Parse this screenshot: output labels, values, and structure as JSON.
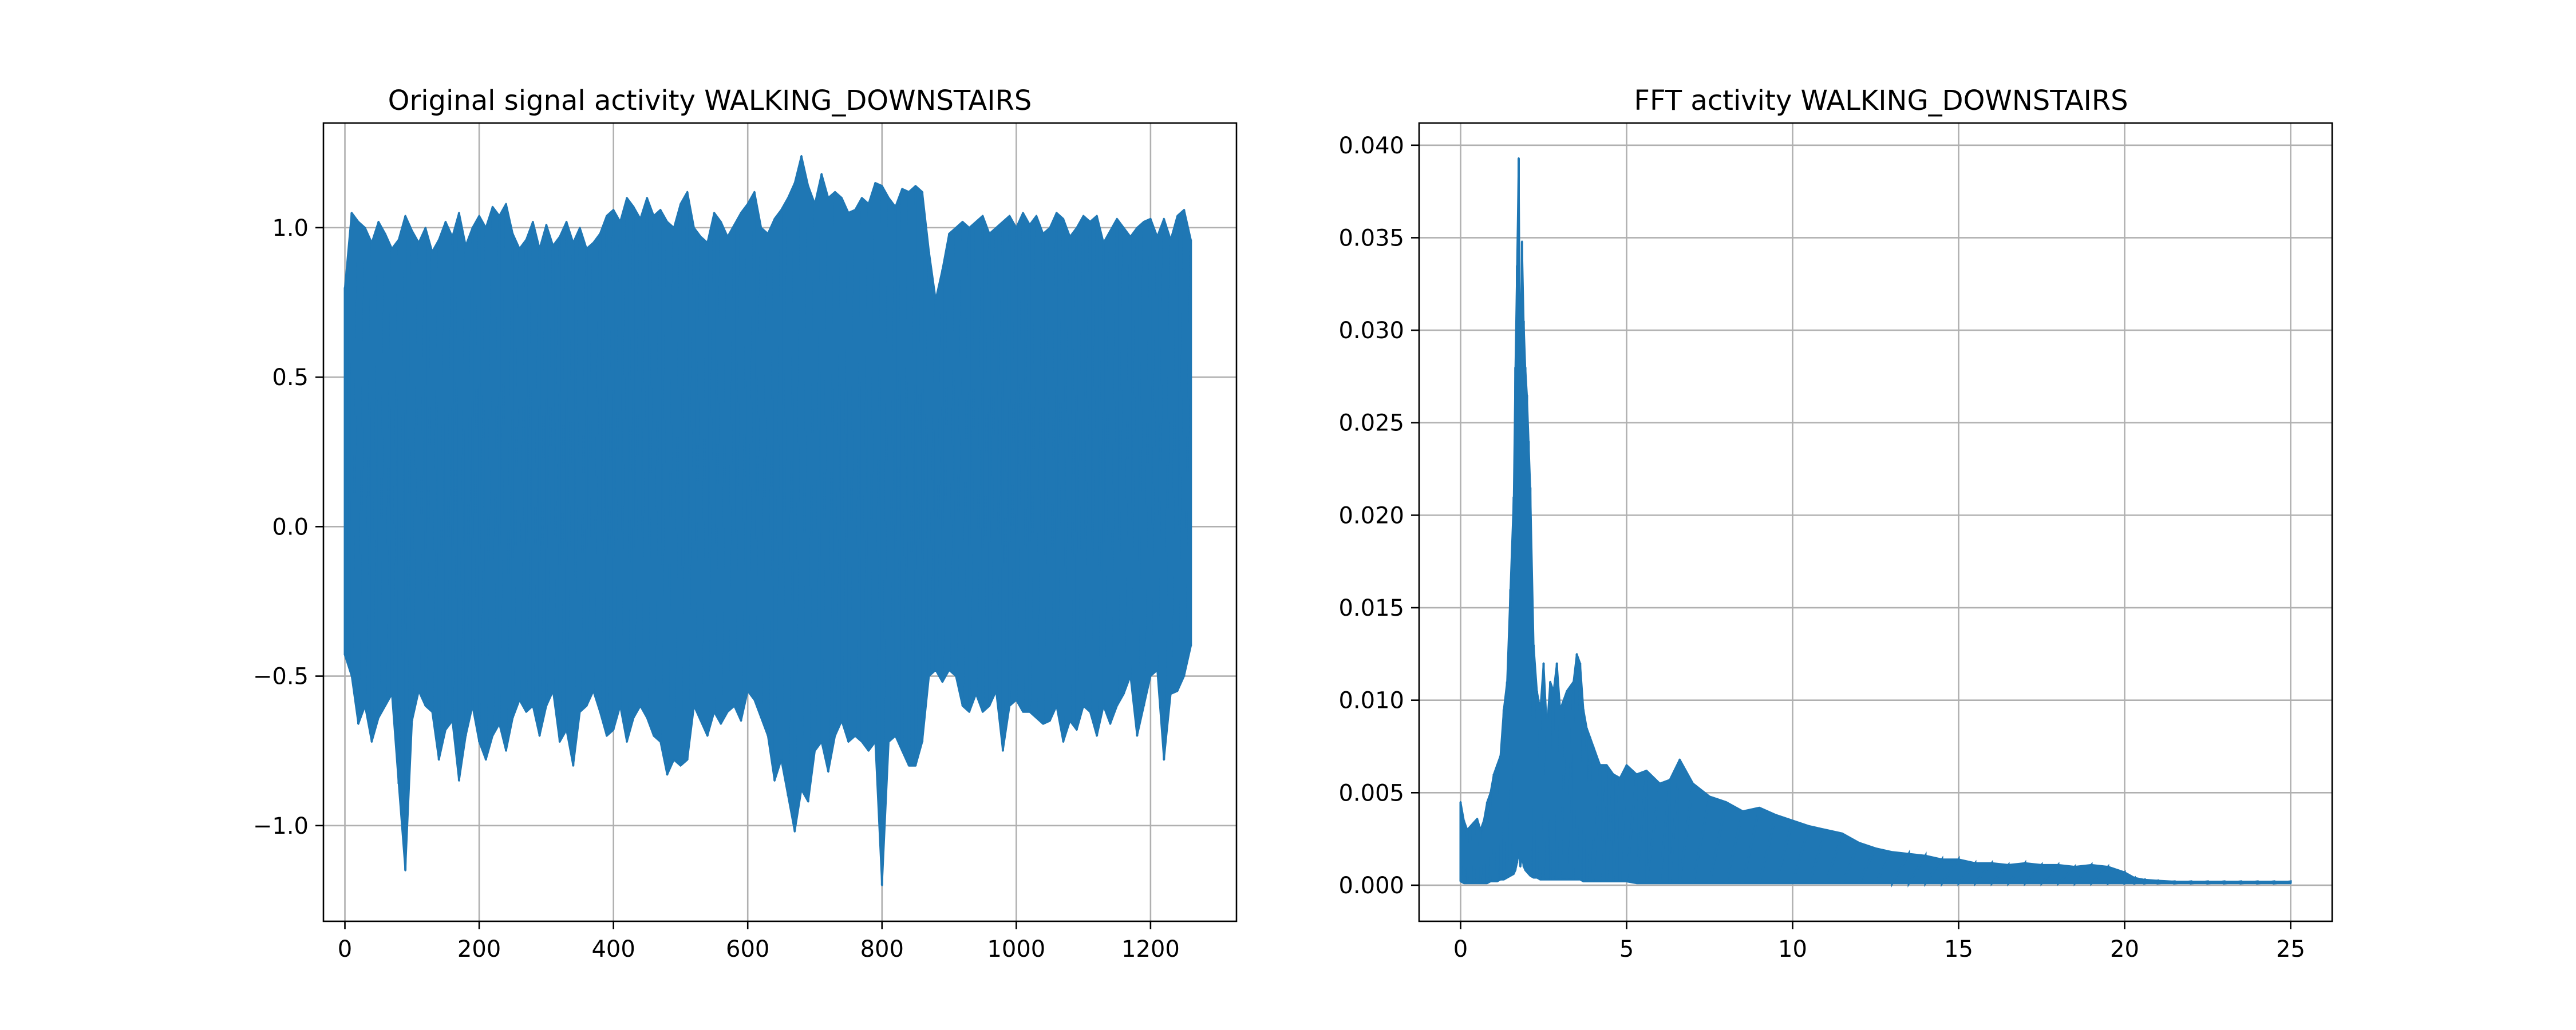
{
  "figure": {
    "background": "#ffffff"
  },
  "chart_data": [
    {
      "type": "line",
      "title": "Original signal activity WALKING_DOWNSTAIRS",
      "xlabel": "",
      "ylabel": "",
      "xlim": [
        -32,
        1328
      ],
      "ylim": [
        -1.32,
        1.35
      ],
      "xticks": [
        0,
        200,
        400,
        600,
        800,
        1000,
        1200
      ],
      "xtick_labels": [
        "0",
        "200",
        "400",
        "600",
        "800",
        "1000",
        "1200"
      ],
      "yticks": [
        -1.0,
        -0.5,
        0.0,
        0.5,
        1.0
      ],
      "ytick_labels": [
        "−1.0",
        "−0.5",
        "0.0",
        "0.5",
        "1.0"
      ],
      "grid": true,
      "color": "#1f77b4",
      "series": [
        {
          "x": [
            0,
            10,
            20,
            30,
            40,
            50,
            60,
            70,
            80,
            90,
            100,
            110,
            120,
            130,
            140,
            150,
            160,
            170,
            180,
            190,
            200,
            210,
            220,
            230,
            240,
            250,
            260,
            270,
            280,
            290,
            300,
            310,
            320,
            330,
            340,
            350,
            360,
            370,
            380,
            390,
            400,
            410,
            420,
            430,
            440,
            450,
            460,
            470,
            480,
            490,
            500,
            510,
            520,
            530,
            540,
            550,
            560,
            570,
            580,
            590,
            600,
            610,
            620,
            630,
            640,
            650,
            660,
            670,
            680,
            690,
            700,
            710,
            720,
            730,
            740,
            750,
            760,
            770,
            780,
            790,
            800,
            810,
            820,
            830,
            840,
            850,
            860,
            870,
            880,
            890,
            900,
            910,
            920,
            930,
            940,
            950,
            960,
            970,
            980,
            990,
            1000,
            1010,
            1020,
            1030,
            1040,
            1050,
            1060,
            1070,
            1080,
            1090,
            1100,
            1110,
            1120,
            1130,
            1140,
            1150,
            1160,
            1170,
            1180,
            1190,
            1200,
            1210,
            1220,
            1230,
            1240,
            1250,
            1260
          ],
          "upper": [
            0.8,
            1.05,
            1.02,
            1.0,
            0.95,
            1.02,
            0.98,
            0.93,
            0.96,
            1.04,
            0.99,
            0.95,
            1.0,
            0.92,
            0.96,
            1.02,
            0.97,
            1.05,
            0.94,
            1.0,
            1.04,
            1.0,
            1.07,
            1.04,
            1.08,
            0.98,
            0.93,
            0.96,
            1.02,
            0.93,
            1.01,
            0.94,
            0.97,
            1.02,
            0.95,
            1.0,
            0.93,
            0.95,
            0.98,
            1.04,
            1.06,
            1.02,
            1.1,
            1.07,
            1.03,
            1.1,
            1.04,
            1.06,
            1.02,
            1.0,
            1.08,
            1.12,
            1.0,
            0.97,
            0.95,
            1.05,
            1.02,
            0.97,
            1.01,
            1.05,
            1.08,
            1.12,
            1.0,
            0.98,
            1.03,
            1.06,
            1.1,
            1.15,
            1.24,
            1.14,
            1.08,
            1.18,
            1.1,
            1.12,
            1.1,
            1.05,
            1.06,
            1.1,
            1.08,
            1.15,
            1.14,
            1.1,
            1.07,
            1.13,
            1.12,
            1.14,
            1.12,
            0.92,
            0.76,
            0.86,
            0.98,
            1.0,
            1.02,
            1.0,
            1.02,
            1.04,
            0.98,
            1.0,
            1.02,
            1.04,
            1.0,
            1.05,
            1.01,
            1.04,
            0.98,
            1.0,
            1.05,
            1.03,
            0.97,
            1.0,
            1.04,
            1.02,
            1.04,
            0.95,
            0.99,
            1.03,
            1.0,
            0.97,
            1.0,
            1.02,
            1.03,
            0.97,
            1.03,
            0.96,
            1.04,
            1.06,
            0.96
          ],
          "lower": [
            -0.43,
            -0.5,
            -0.66,
            -0.6,
            -0.72,
            -0.64,
            -0.6,
            -0.56,
            -0.86,
            -1.15,
            -0.65,
            -0.55,
            -0.6,
            -0.62,
            -0.78,
            -0.68,
            -0.65,
            -0.85,
            -0.7,
            -0.6,
            -0.72,
            -0.78,
            -0.7,
            -0.66,
            -0.75,
            -0.64,
            -0.58,
            -0.62,
            -0.6,
            -0.7,
            -0.6,
            -0.55,
            -0.72,
            -0.68,
            -0.8,
            -0.62,
            -0.6,
            -0.55,
            -0.62,
            -0.7,
            -0.68,
            -0.6,
            -0.72,
            -0.64,
            -0.6,
            -0.64,
            -0.7,
            -0.72,
            -0.83,
            -0.78,
            -0.8,
            -0.78,
            -0.6,
            -0.65,
            -0.7,
            -0.62,
            -0.66,
            -0.62,
            -0.6,
            -0.65,
            -0.55,
            -0.58,
            -0.64,
            -0.7,
            -0.85,
            -0.78,
            -0.9,
            -1.02,
            -0.88,
            -0.92,
            -0.75,
            -0.72,
            -0.82,
            -0.7,
            -0.65,
            -0.72,
            -0.7,
            -0.72,
            -0.75,
            -0.72,
            -1.2,
            -0.72,
            -0.7,
            -0.75,
            -0.8,
            -0.8,
            -0.72,
            -0.5,
            -0.48,
            -0.52,
            -0.48,
            -0.5,
            -0.6,
            -0.62,
            -0.56,
            -0.62,
            -0.6,
            -0.55,
            -0.75,
            -0.6,
            -0.58,
            -0.62,
            -0.62,
            -0.64,
            -0.66,
            -0.65,
            -0.6,
            -0.72,
            -0.65,
            -0.68,
            -0.6,
            -0.62,
            -0.7,
            -0.6,
            -0.66,
            -0.6,
            -0.56,
            -0.5,
            -0.7,
            -0.6,
            -0.5,
            -0.48,
            -0.78,
            -0.56,
            -0.55,
            -0.5,
            -0.4
          ]
        }
      ]
    },
    {
      "type": "line",
      "title": "FFT activity WALKING_DOWNSTAIRS",
      "xlabel": "",
      "ylabel": "",
      "xlim": [
        -1.25,
        26.25
      ],
      "ylim": [
        -0.00195,
        0.0412
      ],
      "xticks": [
        0,
        5,
        10,
        15,
        20,
        25
      ],
      "xtick_labels": [
        "0",
        "5",
        "10",
        "15",
        "20",
        "25"
      ],
      "yticks": [
        0.0,
        0.005,
        0.01,
        0.015,
        0.02,
        0.025,
        0.03,
        0.035,
        0.04
      ],
      "ytick_labels": [
        "0.000",
        "0.005",
        "0.010",
        "0.015",
        "0.020",
        "0.025",
        "0.030",
        "0.035",
        "0.040"
      ],
      "grid": true,
      "color": "#1f77b4",
      "series": [
        {
          "x": [
            0.0,
            0.1,
            0.2,
            0.3,
            0.4,
            0.5,
            0.6,
            0.7,
            0.8,
            0.9,
            1.0,
            1.1,
            1.2,
            1.3,
            1.4,
            1.5,
            1.6,
            1.65,
            1.7,
            1.75,
            1.8,
            1.85,
            1.9,
            1.95,
            2.0,
            2.05,
            2.1,
            2.2,
            2.3,
            2.4,
            2.5,
            2.6,
            2.7,
            2.8,
            2.9,
            3.0,
            3.2,
            3.4,
            3.5,
            3.6,
            3.7,
            3.8,
            3.9,
            4.0,
            4.2,
            4.4,
            4.6,
            4.8,
            5.0,
            5.3,
            5.6,
            6.0,
            6.3,
            6.6,
            7.0,
            7.5,
            8.0,
            8.5,
            9.0,
            9.5,
            10.0,
            10.5,
            11.0,
            11.5,
            12.0,
            12.5,
            13.0,
            13.5,
            14.0,
            14.5,
            15.0,
            15.5,
            16.0,
            16.5,
            17.0,
            17.5,
            18.0,
            18.5,
            19.0,
            19.5,
            20.0,
            20.3,
            20.6,
            21.0,
            21.5,
            22.0,
            22.5,
            23.0,
            23.5,
            24.0,
            24.5,
            25.0
          ],
          "upper": [
            0.0045,
            0.0035,
            0.003,
            0.0032,
            0.0034,
            0.0036,
            0.003,
            0.0035,
            0.0045,
            0.005,
            0.006,
            0.0065,
            0.007,
            0.0095,
            0.011,
            0.016,
            0.021,
            0.028,
            0.0335,
            0.0393,
            0.027,
            0.0348,
            0.0305,
            0.028,
            0.0265,
            0.024,
            0.0215,
            0.013,
            0.0105,
            0.0095,
            0.012,
            0.0085,
            0.011,
            0.0105,
            0.012,
            0.0095,
            0.0105,
            0.011,
            0.0125,
            0.012,
            0.0095,
            0.0085,
            0.008,
            0.0075,
            0.0065,
            0.0065,
            0.006,
            0.0058,
            0.0065,
            0.006,
            0.0062,
            0.0055,
            0.0057,
            0.0068,
            0.0055,
            0.0048,
            0.0045,
            0.004,
            0.0042,
            0.0038,
            0.0035,
            0.0032,
            0.003,
            0.0028,
            0.0023,
            0.002,
            0.0018,
            0.0017,
            0.0016,
            0.0014,
            0.0014,
            0.0012,
            0.0012,
            0.0011,
            0.0012,
            0.0011,
            0.0011,
            0.001,
            0.0011,
            0.001,
            0.0007,
            0.0004,
            0.0003,
            0.00025,
            0.0002,
            0.0002,
            0.0002,
            0.0002,
            0.0002,
            0.0002,
            0.0002,
            0.0002
          ],
          "lower": [
            0.0002,
            0.0001,
            0.0001,
            0.0001,
            0.0001,
            0.0001,
            0.0001,
            0.0001,
            0.0001,
            0.0002,
            0.0002,
            0.0002,
            0.0003,
            0.0003,
            0.0004,
            0.0005,
            0.0006,
            0.0008,
            0.0012,
            0.0018,
            0.001,
            0.0015,
            0.001,
            0.0008,
            0.0007,
            0.0006,
            0.0005,
            0.0004,
            0.0004,
            0.0003,
            0.0003,
            0.0003,
            0.0003,
            0.0003,
            0.0003,
            0.0003,
            0.0003,
            0.0003,
            0.0003,
            0.0003,
            0.0002,
            0.0002,
            0.0002,
            0.0002,
            0.0002,
            0.0002,
            0.0002,
            0.0002,
            0.0002,
            0.0001,
            0.0001,
            0.0001,
            0.0001,
            0.0001,
            0.0001,
            0.0001,
            0.0001,
            0.0001,
            0.0001,
            0.0001,
            0.0001,
            0.0001,
            0.0001,
            0.0001,
            0.0001,
            0.0001,
            0.0001,
            0.0001,
            0.0001,
            0.0001,
            0.0001,
            0.0001,
            0.0001,
            0.0001,
            0.0001,
            0.0001,
            0.0001,
            0.0001,
            0.0001,
            0.0001,
            0.0001,
            0.0001,
            0.0001,
            0.0001,
            0.0001,
            0.0001,
            0.0001,
            0.0001,
            0.0001,
            0.0001,
            0.0001,
            0.0001
          ]
        }
      ]
    }
  ]
}
